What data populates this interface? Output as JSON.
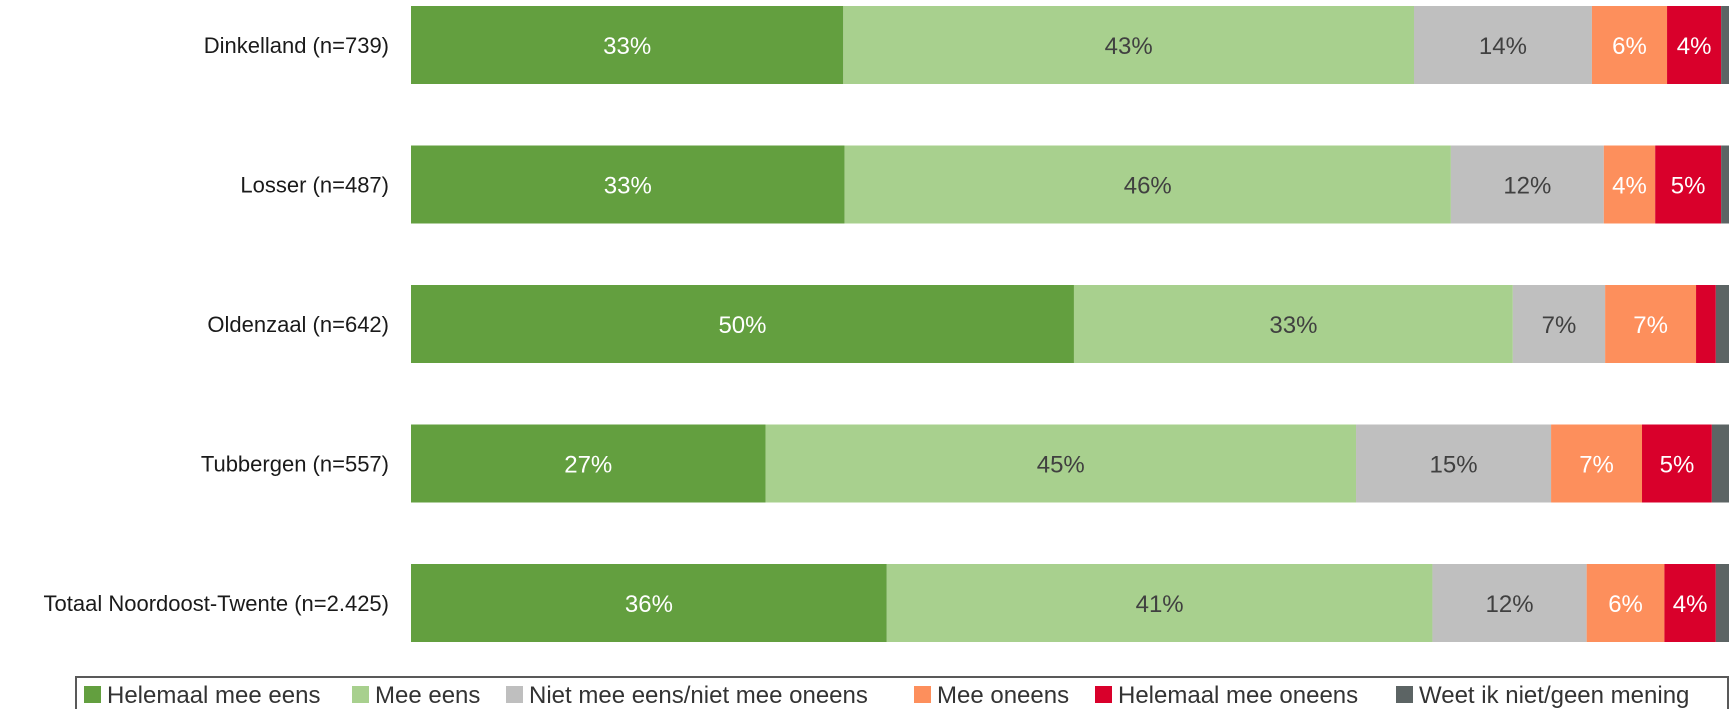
{
  "chart_data": {
    "type": "bar",
    "orientation": "horizontal",
    "stacked": true,
    "percent": true,
    "categories": [
      "Dinkelland (n=739)",
      "Losser (n=487)",
      "Oldenzaal (n=642)",
      "Tubbergen (n=557)",
      "Totaal Noordoost-Twente (n=2.425)"
    ],
    "series": [
      {
        "name": "Helemaal mee eens",
        "color": "#639f3f",
        "label_color": "#ffffff",
        "values": [
          32.8,
          32.9,
          50.3,
          26.9,
          36.1
        ],
        "labels": [
          "33%",
          "33%",
          "50%",
          "27%",
          "36%"
        ]
      },
      {
        "name": "Mee eens",
        "color": "#a8d08e",
        "label_color": "#404040",
        "values": [
          43.3,
          46.0,
          33.3,
          44.8,
          41.4
        ],
        "labels": [
          "43%",
          "46%",
          "33%",
          "45%",
          "41%"
        ]
      },
      {
        "name": "Niet mee eens/niet mee oneens",
        "color": "#bfbfbf",
        "label_color": "#404040",
        "values": [
          13.5,
          11.6,
          7.0,
          14.8,
          11.7
        ],
        "labels": [
          "14%",
          "12%",
          "7%",
          "15%",
          "12%"
        ]
      },
      {
        "name": "Mee oneens",
        "color": "#fd8f5c",
        "label_color": "#ffffff",
        "values": [
          5.7,
          3.9,
          6.9,
          6.9,
          5.9
        ],
        "labels": [
          "6%",
          "4%",
          "7%",
          "7%",
          "6%"
        ]
      },
      {
        "name": "Helemaal mee oneens",
        "color": "#d9002b",
        "label_color": "#ffffff",
        "values": [
          4.1,
          5.0,
          1.5,
          5.3,
          3.9
        ],
        "labels": [
          "4%",
          "5%",
          "",
          "5%",
          "4%"
        ]
      },
      {
        "name": "Weet ik niet/geen mening",
        "color": "#5c6464",
        "label_color": "#ffffff",
        "values": [
          0.6,
          0.6,
          1.0,
          1.3,
          1.0
        ],
        "labels": [
          "",
          "",
          "",
          "",
          ""
        ]
      }
    ],
    "xlim": [
      0,
      100
    ],
    "grid": false,
    "legend_position": "bottom"
  }
}
